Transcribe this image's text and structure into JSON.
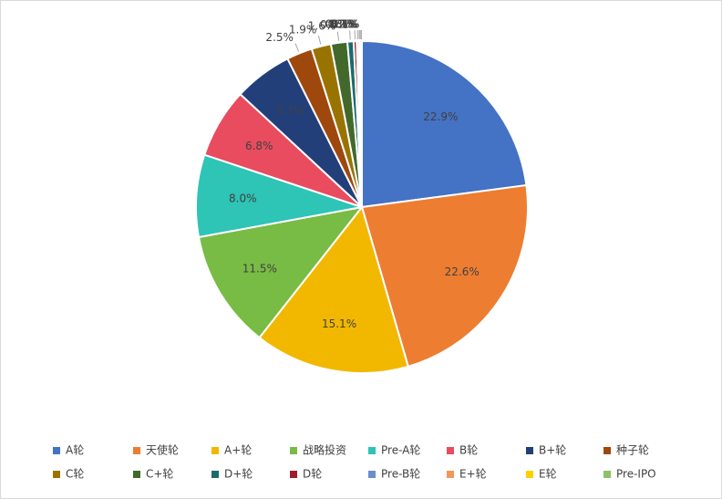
{
  "chart_data": {
    "type": "pie",
    "categories": [
      "A轮",
      "天使轮",
      "A+轮",
      "战略投资",
      "Pre-A轮",
      "B轮",
      "B+轮",
      "种子轮",
      "C轮",
      "C+轮",
      "D+轮",
      "D轮",
      "Pre-B轮",
      "E+轮",
      "E轮",
      "Pre-IPO"
    ],
    "values": [
      22.9,
      22.6,
      15.1,
      11.5,
      8.0,
      6.8,
      5.7,
      2.5,
      1.9,
      1.6,
      0.6,
      0.3,
      0.2,
      0.1,
      0.1,
      0.1
    ],
    "value_labels": [
      "22.9%",
      "22.6%",
      "15.1%",
      "11.5%",
      "8.0%",
      "6.8%",
      "5.7%",
      "2.5%",
      "1.9%",
      "1.6%",
      "0.6%",
      "0.3%",
      "0.2%",
      "0.1%",
      "0.1%",
      "0.1%"
    ],
    "colors": [
      "#4472c4",
      "#ed7d31",
      "#f2b800",
      "#78bb45",
      "#2ec4b6",
      "#e84c5e",
      "#223f7a",
      "#9e480e",
      "#997300",
      "#43682b",
      "#1b6b6b",
      "#9e1c2b",
      "#698ed0",
      "#f1975a",
      "#ffd000",
      "#8cc168"
    ],
    "legend": "bottom"
  }
}
